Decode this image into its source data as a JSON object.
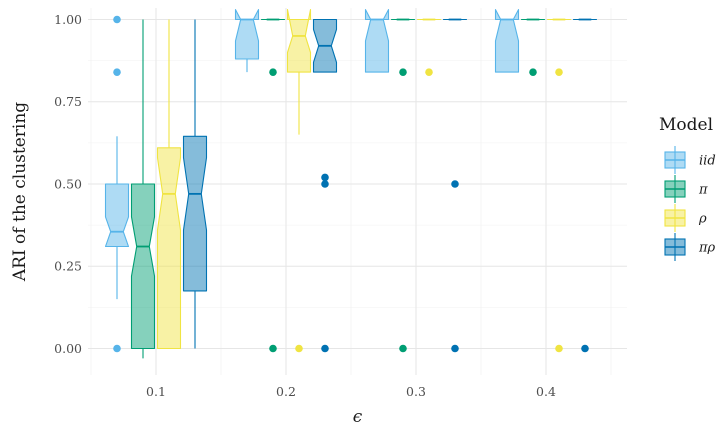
{
  "chart_data": {
    "type": "boxplot",
    "title": "",
    "xlabel": "ϵ",
    "ylabel": "ARI of the clustering",
    "x_categories": [
      "0.1",
      "0.2",
      "0.3",
      "0.4"
    ],
    "y_ticks": [
      "0.00",
      "0.25",
      "0.50",
      "0.75",
      "1.00"
    ],
    "ylim": [
      -0.05,
      1.03
    ],
    "grid": true,
    "notched": true,
    "legend": {
      "title": "Model",
      "placement": "right"
    },
    "series": [
      {
        "name": "iid",
        "color": "#56B4E9",
        "boxes": [
          {
            "x": "0.1",
            "whisker_low": 0.15,
            "q1": 0.31,
            "median": 0.355,
            "q3": 0.5,
            "whisker_high": 0.645,
            "notch_low": 0.31,
            "notch_high": 0.4,
            "outliers": [
              0.0,
              0.84,
              1.0
            ]
          },
          {
            "x": "0.2",
            "whisker_low": 0.84,
            "q1": 0.88,
            "median": 1.0,
            "q3": 1.0,
            "whisker_high": 1.0,
            "notch_low": 0.935,
            "notch_high": 1.03,
            "outliers": []
          },
          {
            "x": "0.3",
            "whisker_low": 0.84,
            "q1": 0.84,
            "median": 1.0,
            "q3": 1.0,
            "whisker_high": 1.0,
            "notch_low": 0.935,
            "notch_high": 1.03,
            "outliers": []
          },
          {
            "x": "0.4",
            "whisker_low": 0.84,
            "q1": 0.84,
            "median": 1.0,
            "q3": 1.0,
            "whisker_high": 1.0,
            "notch_low": 0.935,
            "notch_high": 1.03,
            "outliers": []
          }
        ]
      },
      {
        "name": "π",
        "color": "#009E73",
        "boxes": [
          {
            "x": "0.1",
            "whisker_low": -0.03,
            "q1": 0.0,
            "median": 0.31,
            "q3": 0.5,
            "whisker_high": 1.0,
            "notch_low": 0.22,
            "notch_high": 0.4,
            "outliers": []
          },
          {
            "x": "0.2",
            "whisker_low": 1.0,
            "q1": 1.0,
            "median": 1.0,
            "q3": 1.0,
            "whisker_high": 1.0,
            "notch_low": 1.0,
            "notch_high": 1.0,
            "outliers": [
              0.0,
              0.84
            ]
          },
          {
            "x": "0.3",
            "whisker_low": 1.0,
            "q1": 1.0,
            "median": 1.0,
            "q3": 1.0,
            "whisker_high": 1.0,
            "notch_low": 1.0,
            "notch_high": 1.0,
            "outliers": [
              0.0,
              0.84
            ]
          },
          {
            "x": "0.4",
            "whisker_low": 1.0,
            "q1": 1.0,
            "median": 1.0,
            "q3": 1.0,
            "whisker_high": 1.0,
            "notch_low": 1.0,
            "notch_high": 1.0,
            "outliers": [
              0.84
            ]
          }
        ]
      },
      {
        "name": "ρ",
        "color": "#F0E442",
        "boxes": [
          {
            "x": "0.1",
            "whisker_low": 0.0,
            "q1": 0.0,
            "median": 0.47,
            "q3": 0.61,
            "whisker_high": 1.0,
            "notch_low": 0.36,
            "notch_high": 0.58,
            "outliers": []
          },
          {
            "x": "0.2",
            "whisker_low": 0.65,
            "q1": 0.84,
            "median": 0.95,
            "q3": 1.0,
            "whisker_high": 1.0,
            "notch_low": 0.9,
            "notch_high": 1.03,
            "outliers": [
              0.0
            ]
          },
          {
            "x": "0.3",
            "whisker_low": 1.0,
            "q1": 1.0,
            "median": 1.0,
            "q3": 1.0,
            "whisker_high": 1.0,
            "notch_low": 1.0,
            "notch_high": 1.0,
            "outliers": [
              0.84
            ]
          },
          {
            "x": "0.4",
            "whisker_low": 1.0,
            "q1": 1.0,
            "median": 1.0,
            "q3": 1.0,
            "whisker_high": 1.0,
            "notch_low": 1.0,
            "notch_high": 1.0,
            "outliers": [
              0.0,
              0.84
            ]
          }
        ]
      },
      {
        "name": "πρ",
        "color": "#0072B2",
        "boxes": [
          {
            "x": "0.1",
            "whisker_low": 0.0,
            "q1": 0.175,
            "median": 0.47,
            "q3": 0.645,
            "whisker_high": 1.0,
            "notch_low": 0.36,
            "notch_high": 0.58,
            "outliers": []
          },
          {
            "x": "0.2",
            "whisker_low": 0.84,
            "q1": 0.84,
            "median": 0.92,
            "q3": 1.0,
            "whisker_high": 1.0,
            "notch_low": 0.87,
            "notch_high": 0.97,
            "outliers": [
              0.0,
              0.5,
              0.52
            ]
          },
          {
            "x": "0.3",
            "whisker_low": 1.0,
            "q1": 1.0,
            "median": 1.0,
            "q3": 1.0,
            "whisker_high": 1.0,
            "notch_low": 1.0,
            "notch_high": 1.0,
            "outliers": [
              0.0,
              0.5
            ]
          },
          {
            "x": "0.4",
            "whisker_low": 1.0,
            "q1": 1.0,
            "median": 1.0,
            "q3": 1.0,
            "whisker_high": 1.0,
            "notch_low": 1.0,
            "notch_high": 1.0,
            "outliers": [
              0.0
            ]
          }
        ]
      }
    ]
  }
}
